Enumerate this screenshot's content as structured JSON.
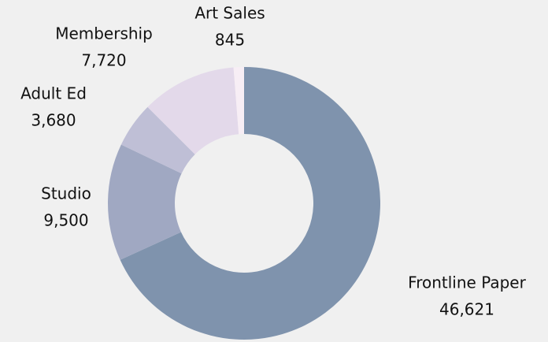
{
  "chart_data": {
    "type": "donut",
    "categories": [
      "Frontline Paper",
      "Studio",
      "Adult Ed",
      "Membership",
      "Art Sales"
    ],
    "values": [
      46621,
      9500,
      3680,
      7720,
      845
    ],
    "value_labels": [
      "46,621",
      "9,500",
      "3,680",
      "7,720",
      "845"
    ],
    "colors": [
      "#7f93ad",
      "#a0a8c2",
      "#bfbfd6",
      "#e3d9ea",
      "#f7eef5"
    ]
  }
}
